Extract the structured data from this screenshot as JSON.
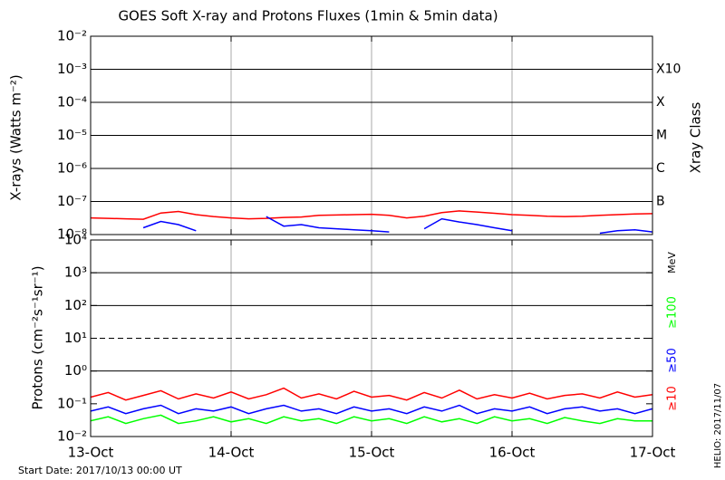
{
  "chart_data": [
    {
      "type": "line",
      "title": "GOES Soft X-ray and Protons Fluxes   (1min & 5min data)",
      "y_label": "X-rays (Watts m⁻²)",
      "y2_label": "Xray Class",
      "log_y": true,
      "ylim": [
        1e-08,
        0.01
      ],
      "yticks": [
        {
          "value": 1e-08,
          "label": "10⁻⁸"
        },
        {
          "value": 1e-07,
          "label": "10⁻⁷"
        },
        {
          "value": 1e-06,
          "label": "10⁻⁶"
        },
        {
          "value": 1e-05,
          "label": "10⁻⁵"
        },
        {
          "value": 0.0001,
          "label": "10⁻⁴"
        },
        {
          "value": 0.001,
          "label": "10⁻³"
        },
        {
          "value": 0.01,
          "label": "10⁻²"
        }
      ],
      "y2ticks": [
        {
          "value": 1e-07,
          "label": "B"
        },
        {
          "value": 1e-06,
          "label": "C"
        },
        {
          "value": 1e-05,
          "label": "M"
        },
        {
          "value": 0.0001,
          "label": "X"
        },
        {
          "value": 0.001,
          "label": "X10"
        }
      ],
      "hlines": [
        1e-07,
        1e-06,
        1e-05,
        0.0001,
        0.001
      ],
      "xlim": [
        "2017-10-13 00:00",
        "2017-10-17 00:00"
      ],
      "x": [
        "2017-10-13 00:00",
        "2017-10-13 03:00",
        "2017-10-13 06:00",
        "2017-10-13 09:00",
        "2017-10-13 12:00",
        "2017-10-13 15:00",
        "2017-10-13 18:00",
        "2017-10-13 21:00",
        "2017-10-14 00:00",
        "2017-10-14 03:00",
        "2017-10-14 06:00",
        "2017-10-14 09:00",
        "2017-10-14 12:00",
        "2017-10-14 15:00",
        "2017-10-14 18:00",
        "2017-10-14 21:00",
        "2017-10-15 00:00",
        "2017-10-15 03:00",
        "2017-10-15 06:00",
        "2017-10-15 09:00",
        "2017-10-15 12:00",
        "2017-10-15 15:00",
        "2017-10-15 18:00",
        "2017-10-15 21:00",
        "2017-10-16 00:00",
        "2017-10-16 03:00",
        "2017-10-16 06:00",
        "2017-10-16 09:00",
        "2017-10-16 12:00",
        "2017-10-16 15:00",
        "2017-10-16 18:00",
        "2017-10-16 21:00",
        "2017-10-17 00:00"
      ],
      "series": [
        {
          "color": "#ff0000",
          "values": [
            3.2e-08,
            3.1e-08,
            3e-08,
            2.9e-08,
            4.5e-08,
            5e-08,
            4e-08,
            3.5e-08,
            3.2e-08,
            3e-08,
            3.1e-08,
            3.3e-08,
            3.4e-08,
            3.8e-08,
            3.9e-08,
            4e-08,
            4.1e-08,
            3.8e-08,
            3.2e-08,
            3.6e-08,
            4.6e-08,
            5.2e-08,
            4.8e-08,
            4.4e-08,
            4e-08,
            3.8e-08,
            3.6e-08,
            3.5e-08,
            3.6e-08,
            3.8e-08,
            4e-08,
            4.2e-08,
            4.3e-08
          ]
        },
        {
          "color": "#0000ff",
          "values": [
            null,
            null,
            null,
            1.6e-08,
            2.5e-08,
            2e-08,
            1.3e-08,
            null,
            null,
            null,
            3.5e-08,
            1.8e-08,
            2e-08,
            1.6e-08,
            1.5e-08,
            1.4e-08,
            1.3e-08,
            1.2e-08,
            null,
            1.5e-08,
            3e-08,
            2.4e-08,
            2e-08,
            1.6e-08,
            1.3e-08,
            null,
            null,
            null,
            null,
            1.1e-08,
            1.3e-08,
            1.4e-08,
            1.2e-08
          ]
        }
      ]
    },
    {
      "type": "line",
      "y_label": "Protons (cm⁻²s⁻¹sr⁻¹)",
      "log_y": true,
      "legend_unit": "MeV",
      "ylim": [
        0.01,
        10000
      ],
      "yticks": [
        {
          "value": 0.01,
          "label": "10⁻²"
        },
        {
          "value": 0.1,
          "label": "10⁻¹"
        },
        {
          "value": 1,
          "label": "10⁰"
        },
        {
          "value": 10,
          "label": "10¹"
        },
        {
          "value": 100,
          "label": "10²"
        },
        {
          "value": 1000,
          "label": "10³"
        },
        {
          "value": 10000,
          "label": "10⁴"
        }
      ],
      "hlines": [
        1,
        100,
        1000
      ],
      "hline_dashed": 10,
      "xlim": [
        "2017-10-13 00:00",
        "2017-10-17 00:00"
      ],
      "xticks": [
        {
          "value": "2017-10-13 00:00",
          "label": "13-Oct"
        },
        {
          "value": "2017-10-14 00:00",
          "label": "14-Oct"
        },
        {
          "value": "2017-10-15 00:00",
          "label": "15-Oct"
        },
        {
          "value": "2017-10-16 00:00",
          "label": "16-Oct"
        },
        {
          "value": "2017-10-17 00:00",
          "label": "17-Oct"
        }
      ],
      "x": [
        "2017-10-13 00:00",
        "2017-10-13 03:00",
        "2017-10-13 06:00",
        "2017-10-13 09:00",
        "2017-10-13 12:00",
        "2017-10-13 15:00",
        "2017-10-13 18:00",
        "2017-10-13 21:00",
        "2017-10-14 00:00",
        "2017-10-14 03:00",
        "2017-10-14 06:00",
        "2017-10-14 09:00",
        "2017-10-14 12:00",
        "2017-10-14 15:00",
        "2017-10-14 18:00",
        "2017-10-14 21:00",
        "2017-10-15 00:00",
        "2017-10-15 03:00",
        "2017-10-15 06:00",
        "2017-10-15 09:00",
        "2017-10-15 12:00",
        "2017-10-15 15:00",
        "2017-10-15 18:00",
        "2017-10-15 21:00",
        "2017-10-16 00:00",
        "2017-10-16 03:00",
        "2017-10-16 06:00",
        "2017-10-16 09:00",
        "2017-10-16 12:00",
        "2017-10-16 15:00",
        "2017-10-16 18:00",
        "2017-10-16 21:00",
        "2017-10-17 00:00"
      ],
      "series": [
        {
          "name": "≥10",
          "color": "#ff0000",
          "values": [
            0.16,
            0.22,
            0.13,
            0.18,
            0.25,
            0.14,
            0.2,
            0.15,
            0.23,
            0.14,
            0.19,
            0.3,
            0.15,
            0.2,
            0.14,
            0.24,
            0.16,
            0.18,
            0.13,
            0.22,
            0.15,
            0.26,
            0.14,
            0.19,
            0.15,
            0.21,
            0.14,
            0.18,
            0.2,
            0.15,
            0.23,
            0.16,
            0.19
          ]
        },
        {
          "name": "≥50",
          "color": "#0000ff",
          "values": [
            0.06,
            0.08,
            0.05,
            0.07,
            0.09,
            0.05,
            0.07,
            0.06,
            0.08,
            0.05,
            0.07,
            0.09,
            0.06,
            0.07,
            0.05,
            0.08,
            0.06,
            0.07,
            0.05,
            0.08,
            0.06,
            0.09,
            0.05,
            0.07,
            0.06,
            0.08,
            0.05,
            0.07,
            0.08,
            0.06,
            0.07,
            0.05,
            0.07
          ]
        },
        {
          "name": "≥100",
          "color": "#00ff00",
          "values": [
            0.03,
            0.04,
            0.025,
            0.035,
            0.045,
            0.025,
            0.03,
            0.04,
            0.028,
            0.035,
            0.025,
            0.04,
            0.03,
            0.035,
            0.025,
            0.04,
            0.03,
            0.035,
            0.025,
            0.04,
            0.028,
            0.035,
            0.025,
            0.04,
            0.03,
            0.035,
            0.025,
            0.038,
            0.03,
            0.025,
            0.035,
            0.03,
            0.03
          ]
        }
      ]
    }
  ],
  "start_date": "Start Date: 2017/10/13 00:00 UT",
  "helio_stamp": "HELIO: 2017/11/07"
}
